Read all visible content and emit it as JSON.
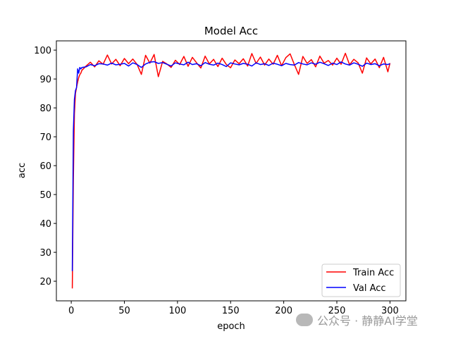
{
  "chart_data": {
    "type": "line",
    "title": "Model Acc",
    "xlabel": "epoch",
    "ylabel": "acc",
    "xlim": [
      -14,
      315
    ],
    "ylim": [
      13.2,
      103.2
    ],
    "xticks": [
      0,
      50,
      100,
      150,
      200,
      250,
      300
    ],
    "yticks": [
      20,
      30,
      40,
      50,
      60,
      70,
      80,
      90,
      100
    ],
    "grid": false,
    "legend_position": "lower-right",
    "x": [
      1,
      2,
      3,
      4,
      5,
      6,
      7,
      8,
      9,
      10,
      14,
      18,
      22,
      26,
      30,
      34,
      38,
      42,
      46,
      50,
      54,
      58,
      62,
      66,
      70,
      74,
      78,
      82,
      86,
      90,
      94,
      98,
      102,
      106,
      110,
      114,
      118,
      122,
      126,
      130,
      134,
      138,
      142,
      146,
      150,
      154,
      158,
      162,
      166,
      170,
      174,
      178,
      182,
      186,
      190,
      194,
      198,
      202,
      206,
      210,
      214,
      218,
      222,
      226,
      230,
      234,
      238,
      242,
      246,
      250,
      254,
      258,
      262,
      266,
      270,
      274,
      278,
      282,
      286,
      290,
      294,
      298,
      300
    ],
    "series": [
      {
        "name": "Train Acc",
        "color": "#ff0000",
        "values": [
          17.5,
          55,
          78,
          85,
          87,
          89,
          90.5,
          91.5,
          92,
          93,
          94.5,
          95.8,
          94.2,
          96.3,
          95.1,
          98.3,
          95.2,
          96.8,
          94.6,
          97.1,
          95.3,
          96.9,
          95.0,
          91.6,
          98.2,
          95.5,
          98.5,
          90.8,
          96.1,
          95.2,
          94.0,
          96.5,
          95.0,
          97.8,
          94.4,
          97.5,
          95.6,
          93.8,
          97.9,
          95.2,
          96.8,
          94.3,
          97.2,
          95.0,
          93.9,
          96.6,
          95.3,
          97.0,
          94.5,
          98.8,
          95.4,
          97.6,
          94.8,
          96.9,
          95.1,
          98.2,
          94.6,
          97.4,
          98.7,
          95.0,
          91.6,
          97.8,
          95.4,
          96.7,
          94.2,
          97.9,
          95.5,
          96.4,
          94.8,
          97.2,
          95.1,
          98.9,
          94.9,
          96.8,
          95.6,
          92.0,
          97.3,
          95.2,
          96.9,
          93.9,
          97.5,
          92.5,
          95.5
        ]
      },
      {
        "name": "Val Acc",
        "color": "#0000ff",
        "values": [
          23.5,
          72,
          83,
          86,
          87,
          93.5,
          92,
          94,
          93.5,
          94,
          94.2,
          95.0,
          94.6,
          95.3,
          95.2,
          94.8,
          95.5,
          94.9,
          95.1,
          95.4,
          94.5,
          95.6,
          95.0,
          94.0,
          95.2,
          95.8,
          96.0,
          95.4,
          95.7,
          95.1,
          94.5,
          95.6,
          95.2,
          94.9,
          95.8,
          95.0,
          95.3,
          94.6,
          95.7,
          95.1,
          94.8,
          95.5,
          95.0,
          94.3,
          95.6,
          95.2,
          94.9,
          95.4,
          95.1,
          94.5,
          95.6,
          95.0,
          95.3,
          94.7,
          95.5,
          95.1,
          94.6,
          95.4,
          95.0,
          94.8,
          95.7,
          95.2,
          94.9,
          95.6,
          95.1,
          95.8,
          95.3,
          94.7,
          95.5,
          95.0,
          95.9,
          95.2,
          94.8,
          95.6,
          95.1,
          94.4,
          95.5,
          95.0,
          95.3,
          94.6,
          95.2,
          95.0,
          95.3
        ]
      }
    ]
  },
  "watermark": "公众号 · 静静AI学堂"
}
